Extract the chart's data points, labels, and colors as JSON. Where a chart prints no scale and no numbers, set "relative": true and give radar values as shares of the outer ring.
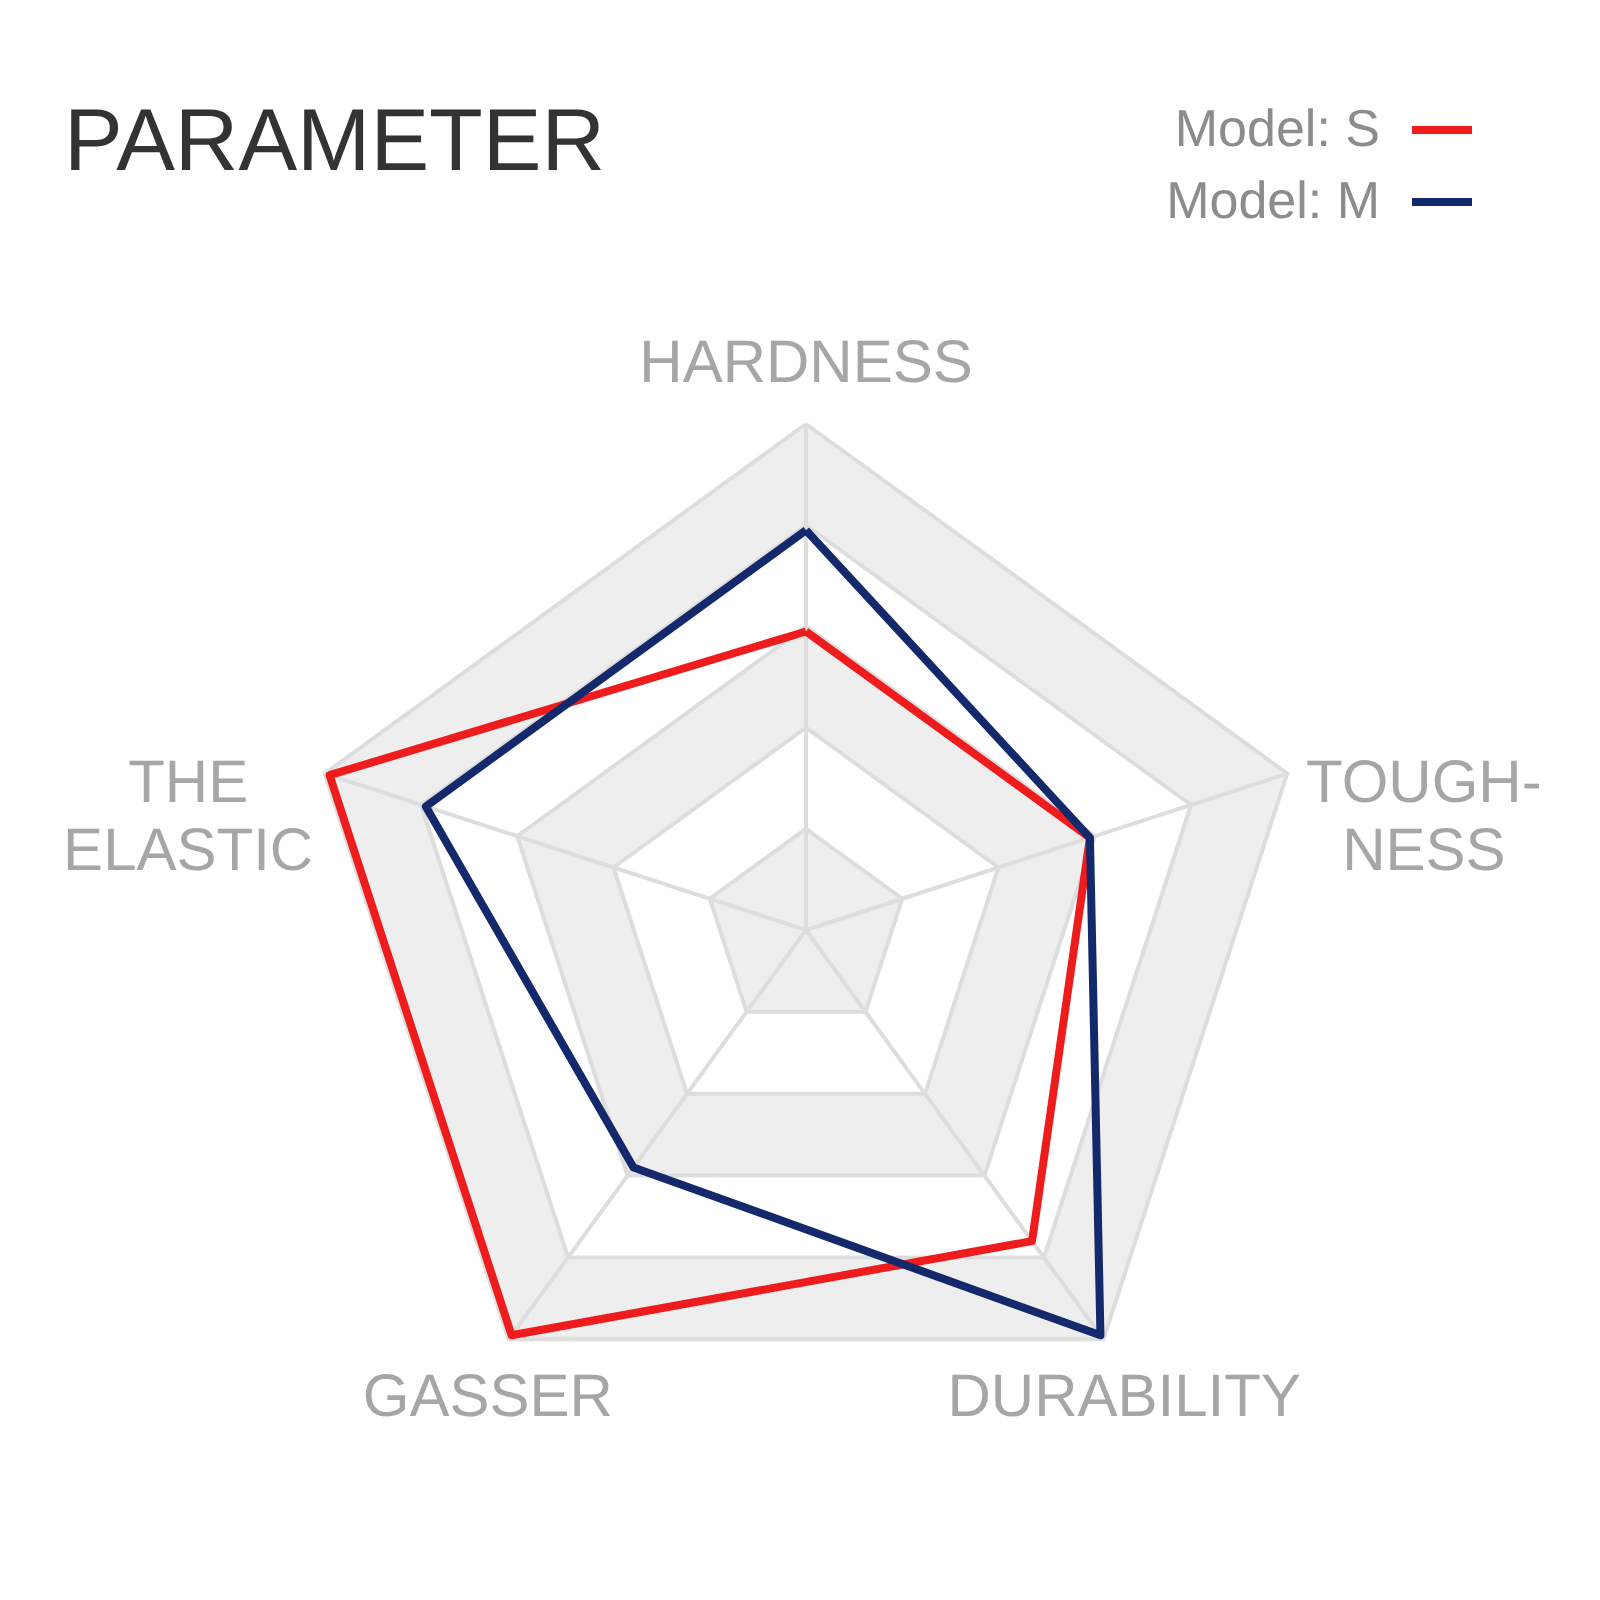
{
  "chart_data": {
    "type": "radar",
    "title": "PARAMETER",
    "relative": true,
    "grid": true,
    "legend": "top right",
    "categories": [
      "HARDNESS",
      "TOUGH-NESS",
      "DURABILITY",
      "GASSER",
      "THE ELASTIC"
    ],
    "series": [
      {
        "name": "Model: S",
        "color": "#ee1c1c",
        "values": [
          0.59,
          0.59,
          0.76,
          0.99,
          0.99
        ]
      },
      {
        "name": "Model: M",
        "color": "#13296b",
        "values": [
          0.79,
          0.59,
          0.99,
          0.58,
          0.79
        ]
      }
    ]
  }
}
